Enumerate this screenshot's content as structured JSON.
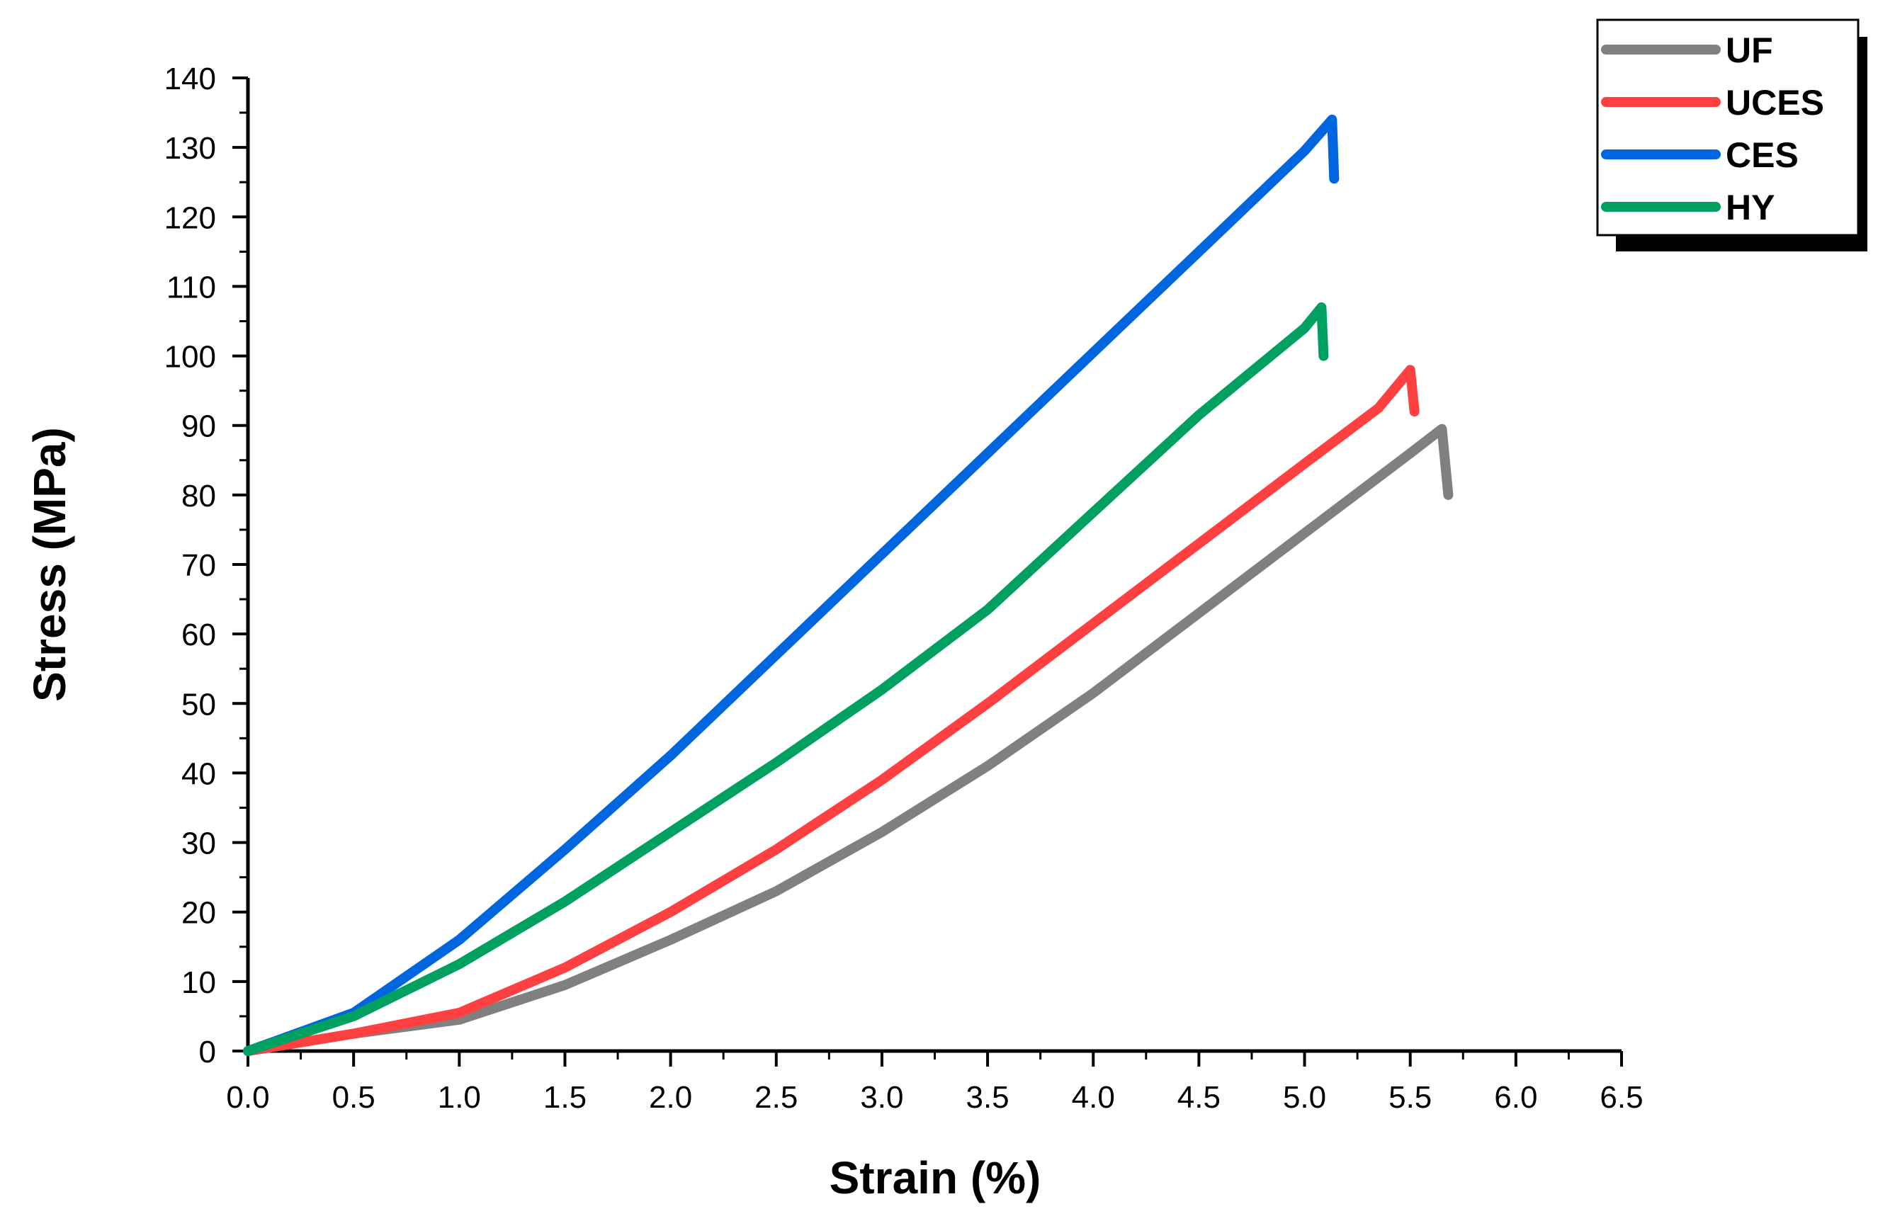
{
  "chart_data": {
    "type": "line",
    "title": "",
    "xlabel": "Strain (%)",
    "ylabel": "Stress (MPa)",
    "xlim": [
      0,
      6.5
    ],
    "ylim": [
      0,
      140
    ],
    "x_ticks": [
      "0.0",
      "0.5",
      "1.0",
      "1.5",
      "2.0",
      "2.5",
      "3.0",
      "3.5",
      "4.0",
      "4.5",
      "5.0",
      "5.5",
      "6.0",
      "6.5"
    ],
    "y_ticks": [
      "0",
      "10",
      "20",
      "30",
      "40",
      "50",
      "60",
      "70",
      "80",
      "90",
      "100",
      "110",
      "120",
      "130",
      "140"
    ],
    "legend_position": "top-right",
    "series": [
      {
        "name": "UF",
        "color": "#808080",
        "x": [
          0.0,
          0.5,
          1.0,
          1.5,
          2.0,
          2.5,
          3.0,
          3.5,
          4.0,
          4.5,
          5.0,
          5.5,
          5.65,
          5.68
        ],
        "y": [
          0,
          2.5,
          4.5,
          9.5,
          16,
          23,
          31.5,
          41,
          51.5,
          63,
          74.5,
          86,
          89.5,
          80
        ]
      },
      {
        "name": "UCES",
        "color": "#FF4040",
        "x": [
          0.0,
          0.5,
          1.0,
          1.5,
          2.0,
          2.5,
          3.0,
          3.5,
          4.0,
          4.5,
          5.0,
          5.35,
          5.5,
          5.52
        ],
        "y": [
          0,
          2.5,
          5.5,
          12,
          20,
          29,
          39,
          50,
          61.5,
          73,
          84.5,
          92.5,
          98,
          92
        ]
      },
      {
        "name": "CES",
        "color": "#0066E0",
        "x": [
          0.0,
          0.5,
          1.0,
          1.5,
          2.0,
          2.5,
          3.0,
          3.5,
          4.0,
          4.5,
          5.0,
          5.13,
          5.14
        ],
        "y": [
          0,
          5.5,
          16,
          29,
          42.5,
          57,
          71.5,
          86,
          100.5,
          115,
          129.5,
          134,
          125.5
        ]
      },
      {
        "name": "HY",
        "color": "#00A060",
        "x": [
          0.0,
          0.5,
          1.0,
          1.5,
          2.0,
          2.5,
          3.0,
          3.5,
          4.0,
          4.5,
          5.0,
          5.08,
          5.09
        ],
        "y": [
          0,
          5,
          12.5,
          21.5,
          31.5,
          41.5,
          52,
          63.5,
          77.5,
          91.5,
          104,
          107,
          100
        ]
      }
    ]
  }
}
